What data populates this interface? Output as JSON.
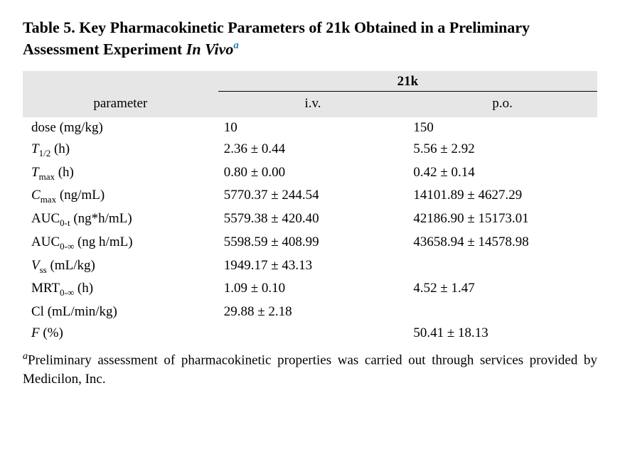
{
  "colors": {
    "header_bg": "#e6e6e6",
    "text": "#000000",
    "superscript_link": "#1a7fb5",
    "rule": "#000000"
  },
  "title": {
    "prefix": "Table 5. Key Pharmacokinetic Parameters of 21k Obtained in a Preliminary Assessment Experiment ",
    "italic_part": "In Vivo",
    "super": "a"
  },
  "table": {
    "group_label": "21k",
    "columns": {
      "param": "parameter",
      "iv": "i.v.",
      "po": "p.o."
    },
    "rows": [
      {
        "param_html": "dose (mg/kg)",
        "iv": "10",
        "po": "150"
      },
      {
        "param_html": "<span class='ital'>T</span><span class='sub'>1/2</span> (h)",
        "iv": "2.36 ± 0.44",
        "po": "5.56 ± 2.92"
      },
      {
        "param_html": "<span class='ital'>T</span><span class='sub'>max</span> (h)",
        "iv": "0.80 ± 0.00",
        "po": "0.42 ± 0.14"
      },
      {
        "param_html": "<span class='ital'>C</span><span class='sub'>max</span> (ng/mL)",
        "iv": "5770.37 ± 244.54",
        "po": "14101.89 ± 4627.29"
      },
      {
        "param_html": "AUC<span class='sub'>0-t</span> (ng*h/mL)",
        "iv": "5579.38 ± 420.40",
        "po": "42186.90 ± 15173.01"
      },
      {
        "param_html": "AUC<span class='sub'>0-∞</span> (ng h/mL)",
        "iv": "5598.59 ± 408.99",
        "po": "43658.94 ± 14578.98"
      },
      {
        "param_html": "<span class='ital'>V</span><span class='sub'>ss</span> (mL/kg)",
        "iv": "1949.17 ± 43.13",
        "po": ""
      },
      {
        "param_html": "MRT<span class='sub'>0-∞</span> (h)",
        "iv": "1.09 ± 0.10",
        "po": "4.52 ± 1.47"
      },
      {
        "param_html": "Cl (mL/min/kg)",
        "iv": "29.88 ± 2.18",
        "po": ""
      },
      {
        "param_html": "<span class='ital'>F</span> (%)",
        "iv": "",
        "po": "50.41 ± 18.13"
      }
    ]
  },
  "footnote": {
    "super": "a",
    "text": "Preliminary assessment of pharmacokinetic properties was carried out through services provided by Medicilon, Inc."
  }
}
